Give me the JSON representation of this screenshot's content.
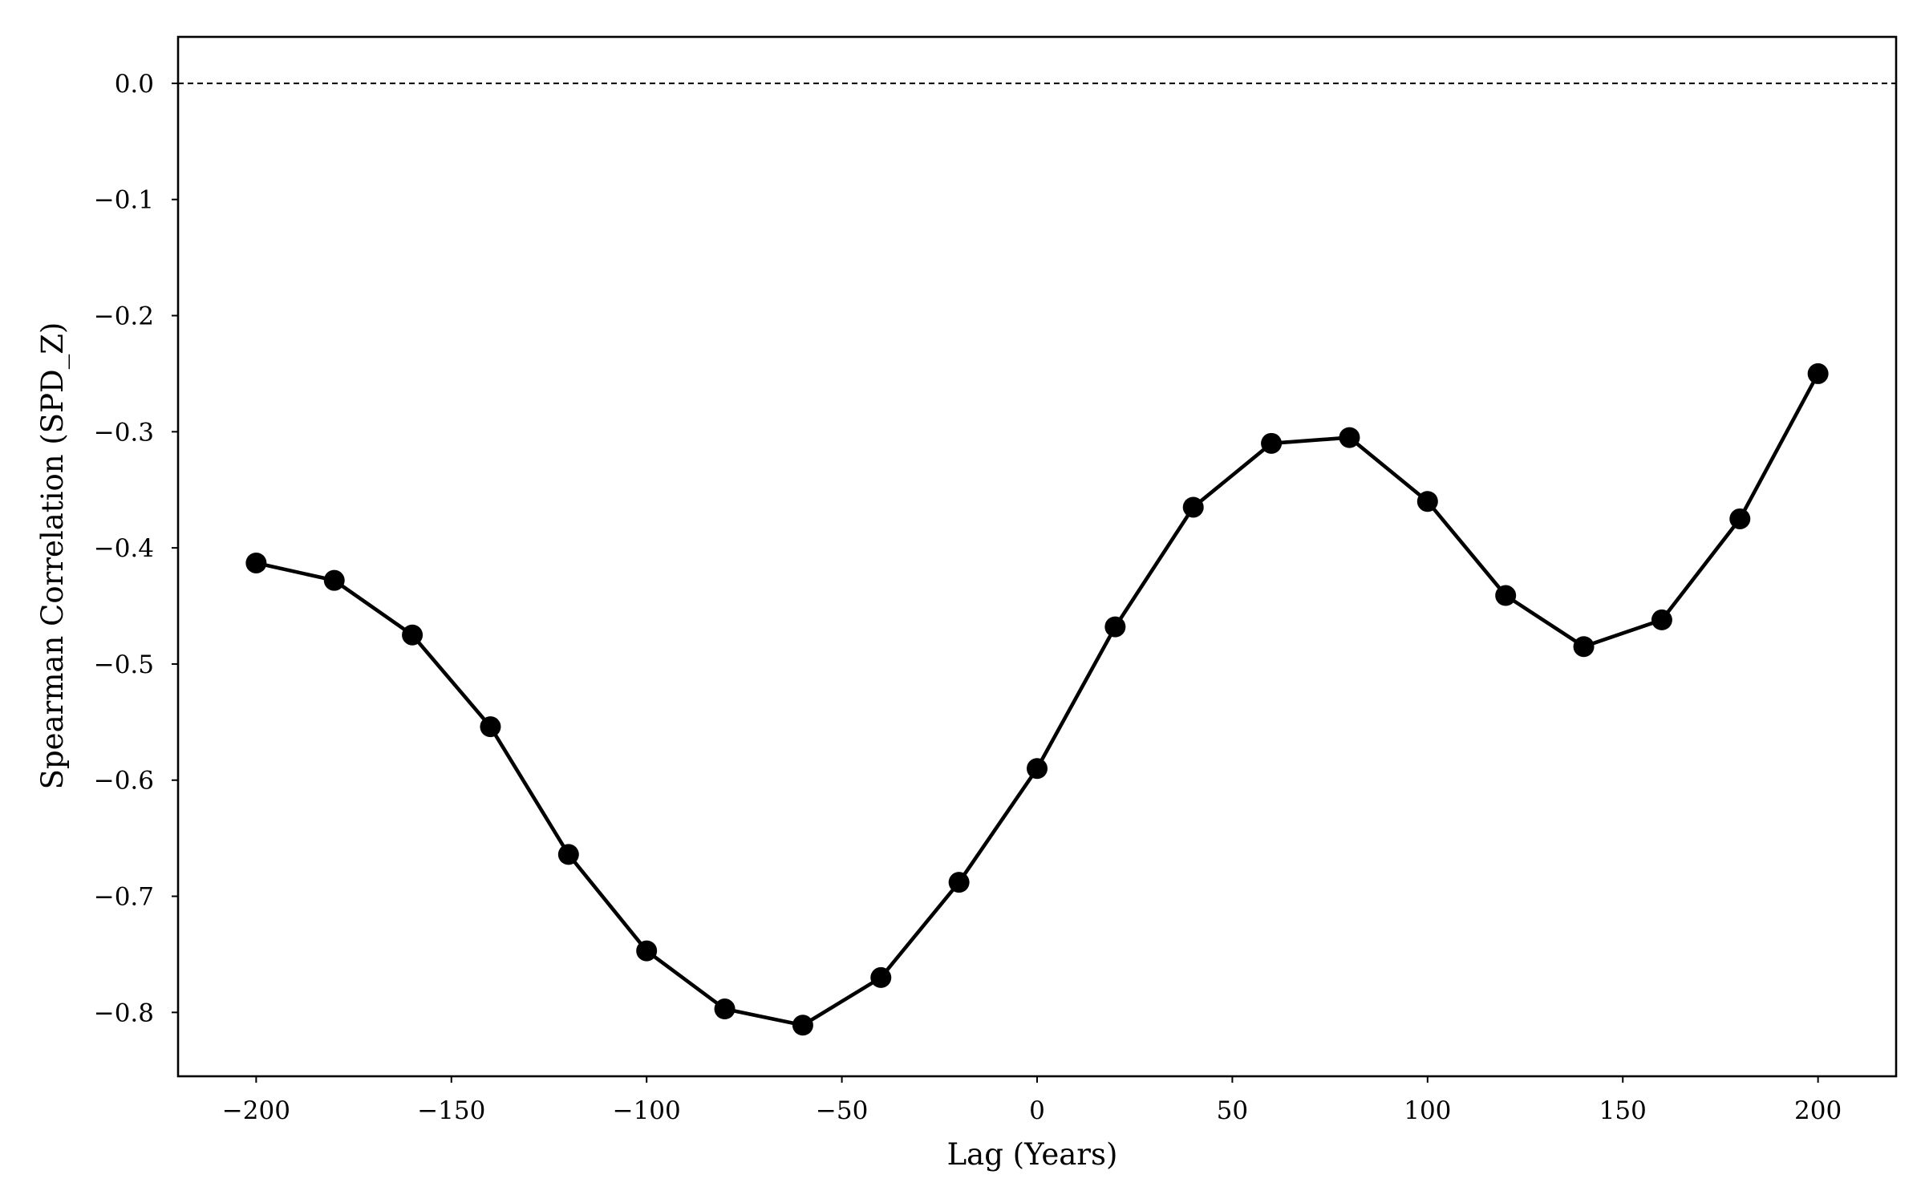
{
  "chart_data": {
    "type": "line",
    "title": "",
    "xlabel": "Lag (Years)",
    "ylabel": "Spearman Correlation (SPD_Z)",
    "xlim": [
      -220,
      220
    ],
    "ylim": [
      -0.855,
      0.04
    ],
    "x_ticks": [
      -200,
      -150,
      -100,
      -50,
      0,
      50,
      100,
      150,
      200
    ],
    "y_ticks": [
      0.0,
      -0.1,
      -0.2,
      -0.3,
      -0.4,
      -0.5,
      -0.6,
      -0.7,
      -0.8
    ],
    "x_tick_labels": [
      "−200",
      "−150",
      "−100",
      "−50",
      "0",
      "50",
      "100",
      "150",
      "200"
    ],
    "y_tick_labels": [
      "0.0",
      "−0.1",
      "−0.2",
      "−0.3",
      "−0.4",
      "−0.5",
      "−0.6",
      "−0.7",
      "−0.8"
    ],
    "grid": false,
    "reference_line": {
      "y": 0.0,
      "style": "dashed",
      "color": "#000000"
    },
    "series": [
      {
        "color": "#000000",
        "marker": "circle",
        "x": [
          -200,
          -180,
          -160,
          -140,
          -120,
          -100,
          -80,
          -60,
          -40,
          -20,
          0,
          20,
          40,
          60,
          80,
          100,
          120,
          140,
          160,
          180,
          200
        ],
        "y": [
          -0.413,
          -0.428,
          -0.475,
          -0.554,
          -0.664,
          -0.747,
          -0.797,
          -0.811,
          -0.77,
          -0.688,
          -0.59,
          -0.468,
          -0.365,
          -0.31,
          -0.305,
          -0.36,
          -0.441,
          -0.485,
          -0.462,
          -0.375,
          -0.25
        ]
      }
    ]
  }
}
